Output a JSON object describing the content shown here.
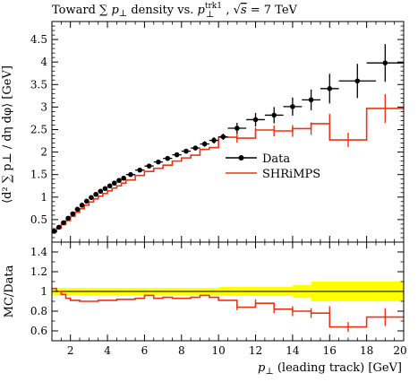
{
  "chart_data": [
    {
      "panel": "main",
      "type": "scatter",
      "title": "Toward ∑ p⊥ density vs. p⊥ trk1, √s = 7 TeV",
      "title_parts": {
        "prefix": "Toward ∑ ",
        "p": "p",
        "perp": "⊥",
        "mid": " density vs. ",
        "p2": "p",
        "sup": "trk1",
        "sub": "⊥",
        "comma": ", ",
        "sqrt": "√",
        "s": "s",
        "energy": " = 7 TeV"
      },
      "xlabel": "",
      "ylabel": "⟨d² ∑ p⊥ / dη dφ⟩ [GeV]",
      "xlim": [
        1,
        20
      ],
      "ylim": [
        0,
        4.9
      ],
      "yticks": [
        0.5,
        1,
        1.5,
        2,
        2.5,
        3,
        3.5,
        4,
        4.5
      ],
      "ytick_labels": [
        "0.5",
        "1",
        "1.5",
        "2",
        "2.5",
        "3",
        "3.5",
        "4",
        "4.5"
      ],
      "legend": {
        "placement": "center-right",
        "entries": [
          "Data",
          "SHRiMPS"
        ]
      },
      "series": [
        {
          "name": "Data",
          "color": "#000000",
          "style": "points-with-errorbars",
          "points": [
            {
              "x": 1.125,
              "y": 0.24,
              "xerr": 0.125,
              "yerr": 0.02
            },
            {
              "x": 1.375,
              "y": 0.33,
              "xerr": 0.125,
              "yerr": 0.02
            },
            {
              "x": 1.625,
              "y": 0.43,
              "xerr": 0.125,
              "yerr": 0.02
            },
            {
              "x": 1.875,
              "y": 0.53,
              "xerr": 0.125,
              "yerr": 0.02
            },
            {
              "x": 2.125,
              "y": 0.63,
              "xerr": 0.125,
              "yerr": 0.02
            },
            {
              "x": 2.375,
              "y": 0.73,
              "xerr": 0.125,
              "yerr": 0.02
            },
            {
              "x": 2.625,
              "y": 0.82,
              "xerr": 0.125,
              "yerr": 0.02
            },
            {
              "x": 2.875,
              "y": 0.91,
              "xerr": 0.125,
              "yerr": 0.02
            },
            {
              "x": 3.125,
              "y": 0.99,
              "xerr": 0.125,
              "yerr": 0.02
            },
            {
              "x": 3.375,
              "y": 1.06,
              "xerr": 0.125,
              "yerr": 0.02
            },
            {
              "x": 3.625,
              "y": 1.13,
              "xerr": 0.125,
              "yerr": 0.02
            },
            {
              "x": 3.875,
              "y": 1.19,
              "xerr": 0.125,
              "yerr": 0.02
            },
            {
              "x": 4.125,
              "y": 1.25,
              "xerr": 0.125,
              "yerr": 0.02
            },
            {
              "x": 4.375,
              "y": 1.31,
              "xerr": 0.125,
              "yerr": 0.02
            },
            {
              "x": 4.625,
              "y": 1.37,
              "xerr": 0.125,
              "yerr": 0.02
            },
            {
              "x": 4.875,
              "y": 1.42,
              "xerr": 0.125,
              "yerr": 0.02
            },
            {
              "x": 5.25,
              "y": 1.5,
              "xerr": 0.25,
              "yerr": 0.03
            },
            {
              "x": 5.75,
              "y": 1.6,
              "xerr": 0.25,
              "yerr": 0.03
            },
            {
              "x": 6.25,
              "y": 1.69,
              "xerr": 0.25,
              "yerr": 0.03
            },
            {
              "x": 6.75,
              "y": 1.78,
              "xerr": 0.25,
              "yerr": 0.04
            },
            {
              "x": 7.25,
              "y": 1.86,
              "xerr": 0.25,
              "yerr": 0.04
            },
            {
              "x": 7.75,
              "y": 1.94,
              "xerr": 0.25,
              "yerr": 0.04
            },
            {
              "x": 8.25,
              "y": 2.02,
              "xerr": 0.25,
              "yerr": 0.05
            },
            {
              "x": 8.75,
              "y": 2.09,
              "xerr": 0.25,
              "yerr": 0.05
            },
            {
              "x": 9.25,
              "y": 2.18,
              "xerr": 0.25,
              "yerr": 0.06
            },
            {
              "x": 9.75,
              "y": 2.26,
              "xerr": 0.25,
              "yerr": 0.07
            },
            {
              "x": 10.25,
              "y": 2.34,
              "xerr": 0.25,
              "yerr": 0.07
            },
            {
              "x": 11.0,
              "y": 2.53,
              "xerr": 0.5,
              "yerr": 0.12
            },
            {
              "x": 12.0,
              "y": 2.72,
              "xerr": 0.5,
              "yerr": 0.15
            },
            {
              "x": 13.0,
              "y": 2.82,
              "xerr": 0.5,
              "yerr": 0.18
            },
            {
              "x": 14.0,
              "y": 3.01,
              "xerr": 0.5,
              "yerr": 0.2
            },
            {
              "x": 15.0,
              "y": 3.16,
              "xerr": 0.5,
              "yerr": 0.23
            },
            {
              "x": 16.0,
              "y": 3.41,
              "xerr": 0.5,
              "yerr": 0.33
            },
            {
              "x": 17.5,
              "y": 3.58,
              "xerr": 1.0,
              "yerr": 0.38
            },
            {
              "x": 19.0,
              "y": 3.98,
              "xerr": 1.0,
              "yerr": 0.42
            }
          ]
        },
        {
          "name": "SHRiMPS",
          "color": "#ee3311",
          "style": "step-with-errorbars",
          "bins": [
            {
              "lo": 1.0,
              "hi": 1.25,
              "y": 0.23
            },
            {
              "lo": 1.25,
              "hi": 1.5,
              "y": 0.31
            },
            {
              "lo": 1.5,
              "hi": 1.75,
              "y": 0.39
            },
            {
              "lo": 1.75,
              "hi": 2.0,
              "y": 0.48
            },
            {
              "lo": 2.0,
              "hi": 2.25,
              "y": 0.57
            },
            {
              "lo": 2.25,
              "hi": 2.5,
              "y": 0.66
            },
            {
              "lo": 2.5,
              "hi": 2.75,
              "y": 0.74
            },
            {
              "lo": 2.75,
              "hi": 3.0,
              "y": 0.82
            },
            {
              "lo": 3.0,
              "hi": 3.25,
              "y": 0.89
            },
            {
              "lo": 3.25,
              "hi": 3.5,
              "y": 0.96
            },
            {
              "lo": 3.5,
              "hi": 3.75,
              "y": 1.02
            },
            {
              "lo": 3.75,
              "hi": 4.0,
              "y": 1.08
            },
            {
              "lo": 4.0,
              "hi": 4.25,
              "y": 1.14
            },
            {
              "lo": 4.25,
              "hi": 4.5,
              "y": 1.2
            },
            {
              "lo": 4.5,
              "hi": 4.75,
              "y": 1.25
            },
            {
              "lo": 4.75,
              "hi": 5.0,
              "y": 1.31
            },
            {
              "lo": 5.0,
              "hi": 5.5,
              "y": 1.38
            },
            {
              "lo": 5.5,
              "hi": 6.0,
              "y": 1.48
            },
            {
              "lo": 6.0,
              "hi": 6.5,
              "y": 1.57
            },
            {
              "lo": 6.5,
              "hi": 7.0,
              "y": 1.64
            },
            {
              "lo": 7.0,
              "hi": 7.5,
              "y": 1.71
            },
            {
              "lo": 7.5,
              "hi": 8.0,
              "y": 1.8
            },
            {
              "lo": 8.0,
              "hi": 8.5,
              "y": 1.87
            },
            {
              "lo": 8.5,
              "hi": 9.0,
              "y": 1.93
            },
            {
              "lo": 9.0,
              "hi": 9.5,
              "y": 2.06
            },
            {
              "lo": 9.5,
              "hi": 10.0,
              "y": 2.1
            },
            {
              "lo": 10.0,
              "hi": 11.0,
              "y": 2.33
            },
            {
              "lo": 11.0,
              "hi": 12.0,
              "y": 2.31
            },
            {
              "lo": 12.0,
              "hi": 13.0,
              "y": 2.49
            },
            {
              "lo": 13.0,
              "hi": 14.0,
              "y": 2.47
            },
            {
              "lo": 14.0,
              "hi": 15.0,
              "y": 2.52
            },
            {
              "lo": 15.0,
              "hi": 16.0,
              "y": 2.63
            },
            {
              "lo": 16.0,
              "hi": 18.0,
              "y": 2.27
            },
            {
              "lo": 18.0,
              "hi": 20.0,
              "y": 2.97
            }
          ],
          "errors": [
            {
              "x": 11.0,
              "y": 2.31,
              "yerr": 0.1
            },
            {
              "x": 12.0,
              "y": 2.43,
              "yerr": 0.12
            },
            {
              "x": 13.0,
              "y": 2.47,
              "yerr": 0.12
            },
            {
              "x": 14.0,
              "y": 2.47,
              "yerr": 0.13
            },
            {
              "x": 15.0,
              "y": 2.52,
              "yerr": 0.14
            },
            {
              "x": 16.0,
              "y": 2.6,
              "yerr": 0.25
            },
            {
              "x": 17.0,
              "y": 2.27,
              "yerr": 0.16
            },
            {
              "x": 19.0,
              "y": 2.97,
              "yerr": 0.32
            }
          ]
        }
      ]
    },
    {
      "panel": "ratio",
      "type": "scatter",
      "title": "",
      "xlabel": "p⊥ (leading track) [GeV]",
      "xlabel_parts": {
        "p": "p",
        "sub": "⊥",
        "rest": " (leading track) [GeV]"
      },
      "ylabel": "MC/Data",
      "xlim": [
        1,
        20
      ],
      "ylim": [
        0.5,
        1.5
      ],
      "xticks": [
        2,
        4,
        6,
        8,
        10,
        12,
        14,
        16,
        18,
        20
      ],
      "xtick_labels": [
        "2",
        "4",
        "6",
        "8",
        "10",
        "12",
        "14",
        "16",
        "18",
        "20"
      ],
      "yticks": [
        0.6,
        0.8,
        1,
        1.2,
        1.4
      ],
      "ytick_labels": [
        "0.6",
        "0.8",
        "1",
        "1.2",
        "1.4"
      ],
      "band_color": "#ffff00",
      "band": [
        {
          "lo": 1.0,
          "hi": 10.0,
          "err": 0.035
        },
        {
          "lo": 10.0,
          "hi": 14.0,
          "err": 0.045
        },
        {
          "lo": 14.0,
          "hi": 15.0,
          "err": 0.065
        },
        {
          "lo": 15.0,
          "hi": 20.0,
          "err": 0.1
        }
      ],
      "series": [
        {
          "name": "SHRiMPS",
          "color": "#ee3311",
          "bins": [
            {
              "lo": 1.0,
              "hi": 1.25,
              "y": 1.03
            },
            {
              "lo": 1.25,
              "hi": 1.5,
              "y": 1.0
            },
            {
              "lo": 1.5,
              "hi": 1.75,
              "y": 0.97
            },
            {
              "lo": 1.75,
              "hi": 2.0,
              "y": 0.93
            },
            {
              "lo": 2.0,
              "hi": 2.5,
              "y": 0.91
            },
            {
              "lo": 2.5,
              "hi": 3.0,
              "y": 0.9
            },
            {
              "lo": 3.0,
              "hi": 3.5,
              "y": 0.9
            },
            {
              "lo": 3.5,
              "hi": 4.0,
              "y": 0.91
            },
            {
              "lo": 4.0,
              "hi": 4.5,
              "y": 0.91
            },
            {
              "lo": 4.5,
              "hi": 5.0,
              "y": 0.92
            },
            {
              "lo": 5.0,
              "hi": 5.5,
              "y": 0.92
            },
            {
              "lo": 5.5,
              "hi": 6.0,
              "y": 0.93
            },
            {
              "lo": 6.0,
              "hi": 6.5,
              "y": 0.96
            },
            {
              "lo": 6.5,
              "hi": 7.0,
              "y": 0.93
            },
            {
              "lo": 7.0,
              "hi": 7.5,
              "y": 0.94
            },
            {
              "lo": 7.5,
              "hi": 8.0,
              "y": 0.93
            },
            {
              "lo": 8.0,
              "hi": 8.5,
              "y": 0.93
            },
            {
              "lo": 8.5,
              "hi": 9.0,
              "y": 0.94
            },
            {
              "lo": 9.0,
              "hi": 9.5,
              "y": 0.96
            },
            {
              "lo": 9.5,
              "hi": 10.0,
              "y": 0.94
            },
            {
              "lo": 10.0,
              "hi": 11.0,
              "y": 0.91
            },
            {
              "lo": 11.0,
              "hi": 12.0,
              "y": 0.84
            },
            {
              "lo": 12.0,
              "hi": 13.0,
              "y": 0.88
            },
            {
              "lo": 13.0,
              "hi": 14.0,
              "y": 0.82
            },
            {
              "lo": 14.0,
              "hi": 15.0,
              "y": 0.8
            },
            {
              "lo": 15.0,
              "hi": 16.0,
              "y": 0.78
            },
            {
              "lo": 16.0,
              "hi": 18.0,
              "y": 0.64
            },
            {
              "lo": 18.0,
              "hi": 20.0,
              "y": 0.74
            }
          ],
          "errors": [
            {
              "x": 11.0,
              "y": 0.84,
              "yerr": 0.03
            },
            {
              "x": 12.0,
              "y": 0.88,
              "yerr": 0.04
            },
            {
              "x": 13.0,
              "y": 0.82,
              "yerr": 0.04
            },
            {
              "x": 14.0,
              "y": 0.8,
              "yerr": 0.05
            },
            {
              "x": 15.0,
              "y": 0.78,
              "yerr": 0.05
            },
            {
              "x": 16.0,
              "y": 0.78,
              "yerr": 0.07
            },
            {
              "x": 17.0,
              "y": 0.64,
              "yerr": 0.05
            },
            {
              "x": 19.0,
              "y": 0.74,
              "yerr": 0.09
            }
          ]
        }
      ]
    }
  ]
}
